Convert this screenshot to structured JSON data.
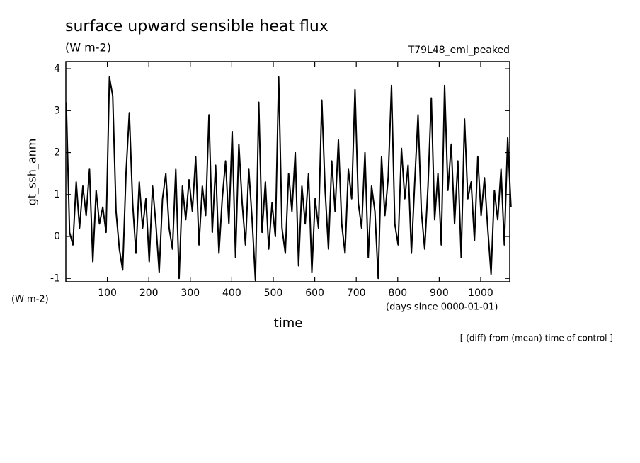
{
  "chart_data": {
    "type": "line",
    "title": "surface upward sensible heat flux",
    "subtitle": "(W m-2)",
    "annotation": "T79L48_eml_peaked",
    "ylabel": "gt_ssh_anm",
    "yunits": "(W m-2)",
    "xlabel": "time",
    "xunits": "(days since 0000-01-01)",
    "footnote": "[ (diff) from (mean) time of control ]",
    "x": [
      1,
      9,
      17,
      25,
      33,
      41,
      49,
      57,
      65,
      73,
      81,
      89,
      97,
      105,
      113,
      121,
      129,
      137,
      145,
      153,
      161,
      169,
      177,
      185,
      193,
      201,
      209,
      217,
      225,
      233,
      241,
      249,
      257,
      265,
      273,
      281,
      289,
      297,
      305,
      313,
      321,
      329,
      337,
      345,
      353,
      361,
      369,
      377,
      385,
      393,
      401,
      409,
      417,
      425,
      433,
      441,
      449,
      457,
      465,
      473,
      481,
      489,
      497,
      505,
      513,
      521,
      529,
      537,
      545,
      553,
      561,
      569,
      577,
      585,
      593,
      601,
      609,
      617,
      625,
      633,
      641,
      649,
      657,
      665,
      673,
      681,
      689,
      697,
      705,
      713,
      721,
      729,
      737,
      745,
      753,
      761,
      769,
      777,
      785,
      793,
      801,
      809,
      817,
      825,
      833,
      841,
      849,
      857,
      865,
      873,
      881,
      889,
      897,
      905,
      913,
      921,
      929,
      937,
      945,
      953,
      961,
      969,
      977,
      985,
      993,
      1001,
      1009,
      1017,
      1025,
      1033,
      1041,
      1049,
      1057,
      1065,
      1073
    ],
    "series": [
      {
        "name": "gt_ssh_anm",
        "color": "#000000",
        "values": [
          3.2,
          0.1,
          -0.2,
          1.3,
          0.2,
          1.2,
          0.5,
          1.6,
          -0.6,
          1.1,
          0.3,
          0.7,
          0.1,
          3.8,
          3.35,
          0.6,
          -0.3,
          -0.8,
          1.5,
          2.95,
          0.8,
          -0.4,
          1.3,
          0.2,
          0.9,
          -0.6,
          1.2,
          0.3,
          -0.85,
          0.9,
          1.5,
          0.2,
          -0.3,
          1.6,
          -1.0,
          1.2,
          0.4,
          1.35,
          0.6,
          1.9,
          -0.2,
          1.2,
          0.5,
          2.9,
          0.1,
          1.7,
          -0.4,
          0.9,
          1.8,
          0.3,
          2.5,
          -0.5,
          2.2,
          0.8,
          -0.2,
          1.6,
          0.4,
          -1.05,
          3.2,
          0.1,
          1.3,
          -0.3,
          0.8,
          0.0,
          3.8,
          0.2,
          -0.4,
          1.5,
          0.6,
          2.0,
          -0.7,
          1.2,
          0.3,
          1.5,
          -0.85,
          0.9,
          0.2,
          3.25,
          1.1,
          -0.3,
          1.8,
          0.6,
          2.3,
          0.3,
          -0.4,
          1.6,
          0.9,
          3.5,
          0.8,
          0.2,
          2.0,
          -0.5,
          1.2,
          0.6,
          -1.0,
          1.9,
          0.5,
          1.4,
          3.6,
          0.3,
          -0.2,
          2.1,
          0.9,
          1.7,
          -0.4,
          1.3,
          2.9,
          0.6,
          -0.3,
          1.2,
          3.3,
          0.4,
          1.5,
          -0.2,
          3.6,
          1.1,
          2.2,
          0.3,
          1.8,
          -0.5,
          2.8,
          0.9,
          1.3,
          -0.1,
          1.9,
          0.5,
          1.4,
          0.2,
          -0.9,
          1.1,
          0.4,
          1.6,
          -0.2,
          2.35,
          0.7
        ]
      }
    ],
    "xlim": [
      0,
      1070
    ],
    "ylim": [
      -1.08,
      4.17
    ],
    "xticks": [
      100,
      200,
      300,
      400,
      500,
      600,
      700,
      800,
      900,
      1000
    ],
    "yticks": [
      -1,
      0,
      1,
      2,
      3,
      4
    ]
  }
}
